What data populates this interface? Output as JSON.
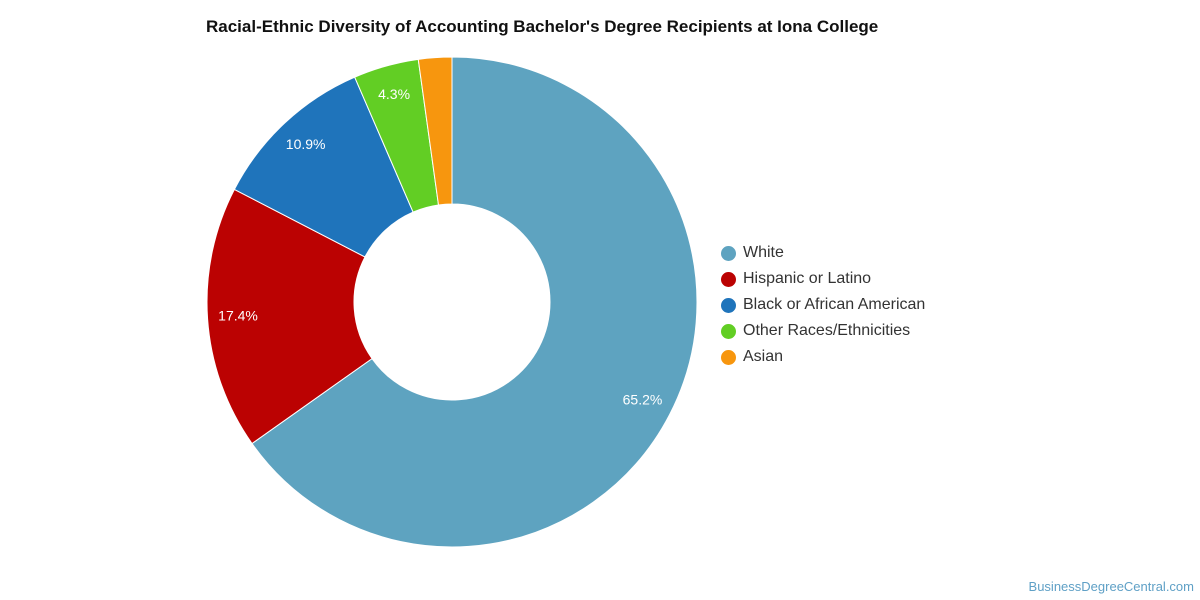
{
  "chart_data": {
    "type": "pie",
    "title": "Racial-Ethnic Diversity of Accounting Bachelor's Degree Recipients at Iona College",
    "hole": true,
    "legend_position": "right",
    "slices": [
      {
        "label": "White",
        "value": 65.2,
        "display": "65.2%",
        "color": "#5ea3c0"
      },
      {
        "label": "Hispanic or Latino",
        "value": 17.4,
        "display": "17.4%",
        "color": "#bb0202"
      },
      {
        "label": "Black or African American",
        "value": 10.9,
        "display": "10.9%",
        "color": "#1f74bb"
      },
      {
        "label": "Other Races/Ethnicities",
        "value": 4.3,
        "display": "4.3%",
        "color": "#62ce24"
      },
      {
        "label": "Asian",
        "value": 2.2,
        "display": "",
        "color": "#f7960e"
      }
    ]
  },
  "legend": {
    "items": [
      {
        "label": "White",
        "color": "#5ea3c0"
      },
      {
        "label": "Hispanic or Latino",
        "color": "#bb0202"
      },
      {
        "label": "Black or African American",
        "color": "#1f74bb"
      },
      {
        "label": "Other Races/Ethnicities",
        "color": "#62ce24"
      },
      {
        "label": "Asian",
        "color": "#f7960e"
      }
    ]
  },
  "credit": {
    "text": "BusinessDegreeCentral.com"
  }
}
